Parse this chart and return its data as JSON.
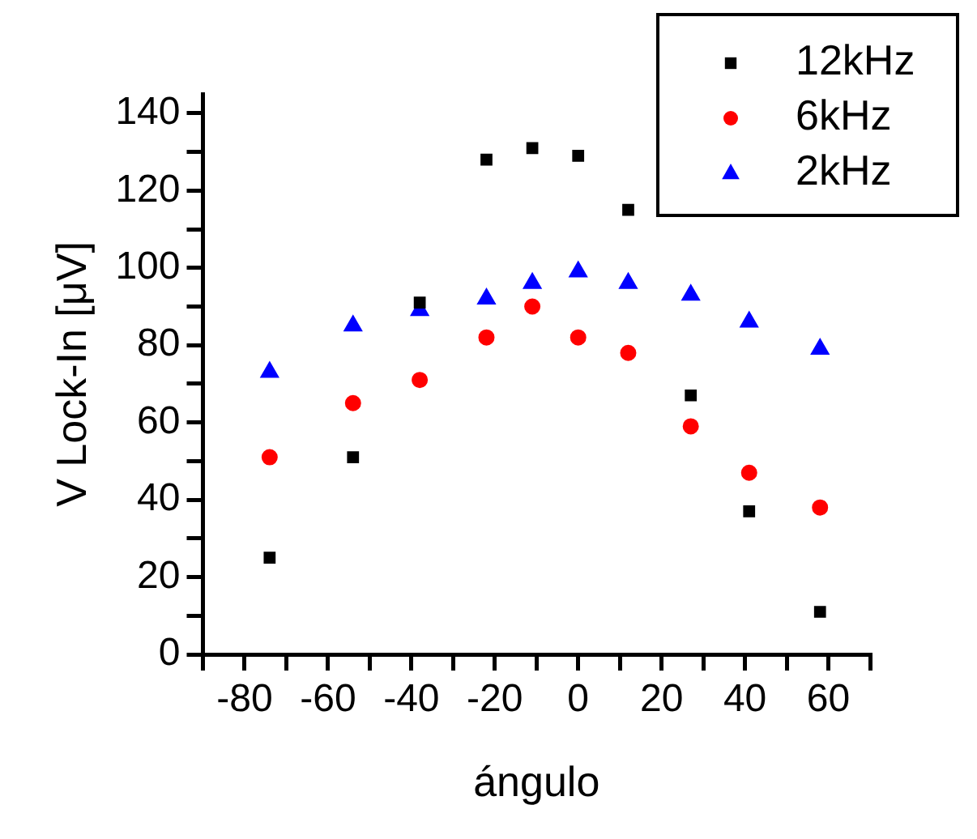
{
  "chart_data": {
    "type": "scatter",
    "xlabel": "ángulo",
    "ylabel": "V Lock-In [μV]",
    "xlim": [
      -90,
      70
    ],
    "xticks": [
      {
        "value": -90,
        "label": null
      },
      -80,
      {
        "value": -70,
        "label": null
      },
      -60,
      {
        "value": -50,
        "label": null
      },
      -40,
      {
        "value": -30,
        "label": null
      },
      -20,
      {
        "value": -10,
        "label": null
      },
      0,
      {
        "value": 10,
        "label": null
      },
      20,
      {
        "value": 30,
        "label": null
      },
      40,
      {
        "value": 50,
        "label": null
      },
      60,
      {
        "value": 70,
        "label": null
      }
    ],
    "ylim": [
      0,
      145
    ],
    "yticks": [
      0,
      {
        "value": 10,
        "label": null
      },
      20,
      {
        "value": 30,
        "label": null
      },
      40,
      {
        "value": 50,
        "label": null
      },
      60,
      {
        "value": 70,
        "label": null
      },
      80,
      {
        "value": 90,
        "label": null
      },
      100,
      {
        "value": 110,
        "label": null
      },
      120,
      {
        "value": 130,
        "label": null
      },
      140
    ],
    "x": [
      -74,
      -54,
      -38,
      -22,
      -11,
      0,
      12,
      27,
      41,
      58
    ],
    "grid": false,
    "legend": "top right",
    "series": [
      {
        "name": "12kHz",
        "color": "#000000",
        "marker": "square",
        "values": [
          25,
          51,
          91,
          128,
          131,
          129,
          115,
          67,
          37,
          11
        ]
      },
      {
        "name": "6kHz",
        "color": "#ff0000",
        "marker": "circle",
        "values": [
          51,
          65,
          71,
          82,
          90,
          82,
          78,
          59,
          47,
          38
        ]
      },
      {
        "name": "2kHz",
        "color": "#0000ff",
        "marker": "triangle",
        "values": [
          73,
          85,
          89,
          92,
          96,
          99,
          96,
          93,
          86,
          79
        ]
      }
    ]
  }
}
